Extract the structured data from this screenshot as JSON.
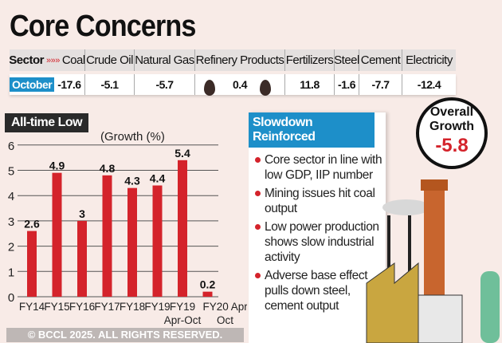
{
  "title": "Core Concerns",
  "table": {
    "header_label": "Sector",
    "row_label": "October",
    "sectors": [
      "Coal",
      "Crude Oil",
      "Natural Gas",
      "Refinery Products",
      "Fertilizers",
      "Steel",
      "Cement",
      "Electricity"
    ],
    "values": [
      "-17.6",
      "-5.1",
      "-5.7",
      "0.4",
      "11.8",
      "-1.6",
      "-7.7",
      "-12.4"
    ]
  },
  "chart_data": {
    "type": "bar",
    "title": "All-time Low",
    "ylabel": "(Growth (%)",
    "categories": [
      [
        "FY14"
      ],
      [
        "FY15"
      ],
      [
        "FY16"
      ],
      [
        "FY17"
      ],
      [
        "FY18"
      ],
      [
        "FY19"
      ],
      [
        "FY19",
        "Apr-Oct"
      ],
      [
        "FY20 Apr-",
        "Oct"
      ]
    ],
    "values": [
      2.6,
      4.9,
      3,
      4.8,
      4.3,
      4.4,
      5.4,
      0.2
    ],
    "labels": [
      "2.6",
      "4.9",
      "3",
      "4.8",
      "4.3",
      "4.4",
      "5.4",
      "0.2"
    ],
    "ylim": [
      0,
      6
    ],
    "yticks": [
      "0",
      "1",
      "2",
      "3",
      "4",
      "5",
      "6"
    ],
    "grid": true,
    "bar_color": "#d4232b"
  },
  "panel": {
    "title": "Slowdown Reinforced",
    "points": [
      "Core sector in line with low GDP, IIP number",
      "Mining issues hit coal output",
      "Low power production shows slow industrial activity",
      "Adverse base effect pulls down steel, cement output"
    ]
  },
  "overall": {
    "line1": "Overall",
    "line2": "Growth",
    "value": "-5.8"
  },
  "watermark": "© BCCL 2025. ALL RIGHTS RESERVED.",
  "colors": {
    "accent_red": "#d4232b",
    "accent_blue": "#1d8fc9",
    "background": "#f8ebe7"
  }
}
